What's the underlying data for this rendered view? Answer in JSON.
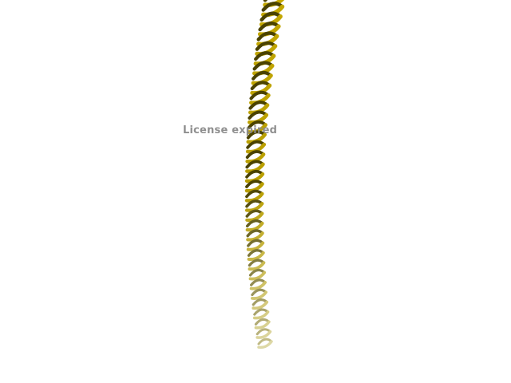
{
  "watermark": {
    "text": "License expired"
  },
  "helix": {
    "color_top": "#c4a800",
    "color_mid": "#b89e00",
    "color_bottom": "#ddd8a6",
    "color_shadow": "#4a4200"
  }
}
